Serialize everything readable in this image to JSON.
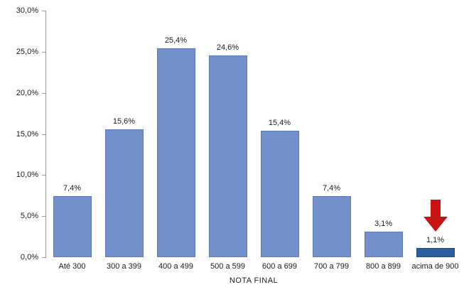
{
  "chart_data": {
    "type": "bar",
    "title": "",
    "xlabel": "NOTA FINAL",
    "ylabel": "",
    "ylim": [
      0,
      30
    ],
    "ytick_labels": [
      "30,0%",
      "25,0%",
      "20,0%",
      "15,0%",
      "10,0%",
      "5,0%",
      "0,0%"
    ],
    "grid": false,
    "legend": null,
    "categories": [
      "Até 300",
      "300 a 399",
      "400 a 499",
      "500 a 599",
      "600 a 699",
      "700 a 799",
      "800 a 899",
      "acima de 900"
    ],
    "values": [
      7.4,
      15.6,
      25.4,
      24.6,
      15.4,
      7.4,
      3.1,
      1.1
    ],
    "value_labels": [
      "7,4%",
      "15,6%",
      "25,4%",
      "24,6%",
      "15,4%",
      "7,4%",
      "3,1%",
      "1,1%"
    ],
    "highlight_index": 7,
    "annotation": {
      "type": "down-arrow",
      "target": "acima de 900",
      "color": "#c81414"
    },
    "colors": {
      "bar_fill": "#7390cb",
      "bar_border": "#5b79b8",
      "highlight_fill": "#2b5ea1",
      "highlight_border": "#1e4c7e",
      "axis": "#9b9b9b",
      "text": "#1a1a1a"
    }
  }
}
